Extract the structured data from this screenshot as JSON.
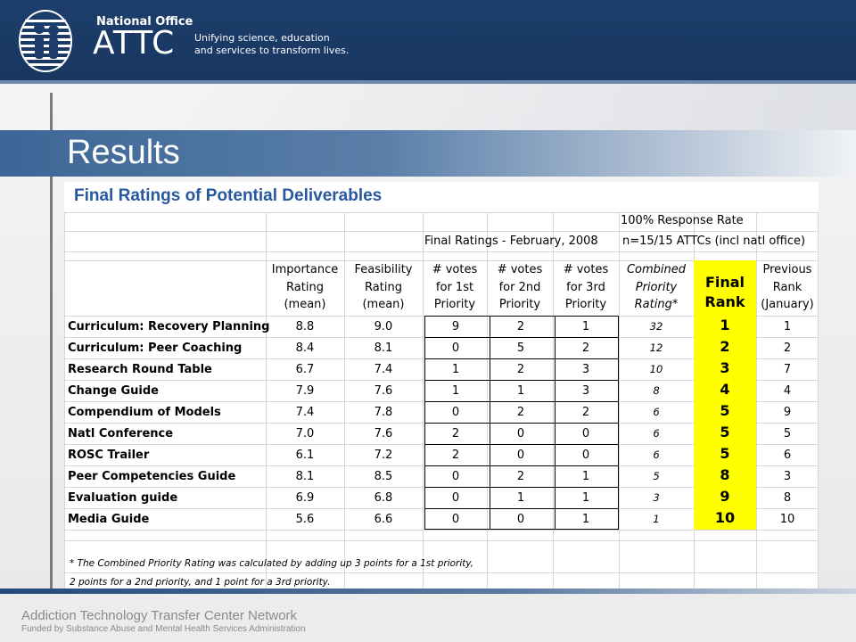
{
  "header": {
    "org_office": "National Office",
    "org_name": "ATTC",
    "tagline_1": "Unifying science, education",
    "tagline_2": "and services to transform lives."
  },
  "slide": {
    "title": "Results",
    "subtitle": "Final Ratings of Potential Deliverables"
  },
  "table": {
    "banner_response": "100% Response Rate",
    "banner_period": "Final Ratings - February, 2008",
    "banner_n": "n=15/15 ATTCs (incl natl office)",
    "columns": {
      "importance": [
        "Importance",
        "Rating",
        "(mean)"
      ],
      "feasibility": [
        "Feasibility",
        "Rating",
        "(mean)"
      ],
      "votes1": [
        "# votes",
        "for 1st",
        "Priority"
      ],
      "votes2": [
        "# votes",
        "for 2nd",
        "Priority"
      ],
      "votes3": [
        "# votes",
        "for 3rd",
        "Priority"
      ],
      "combined": [
        "Combined",
        "Priority",
        "Rating*"
      ],
      "final": [
        "Final",
        "Rank"
      ],
      "previous": [
        "Previous",
        "Rank",
        "(January)"
      ]
    },
    "rows": [
      {
        "name": "Curriculum: Recovery Planning",
        "imp": "8.8",
        "feas": "9.0",
        "v1": "9",
        "v2": "2",
        "v3": "1",
        "comb": "32",
        "final": "1",
        "prev": "1"
      },
      {
        "name": "Curriculum: Peer Coaching",
        "imp": "8.4",
        "feas": "8.1",
        "v1": "0",
        "v2": "5",
        "v3": "2",
        "comb": "12",
        "final": "2",
        "prev": "2"
      },
      {
        "name": "Research Round Table",
        "imp": "6.7",
        "feas": "7.4",
        "v1": "1",
        "v2": "2",
        "v3": "3",
        "comb": "10",
        "final": "3",
        "prev": "7"
      },
      {
        "name": "Change Guide",
        "imp": "7.9",
        "feas": "7.6",
        "v1": "1",
        "v2": "1",
        "v3": "3",
        "comb": "8",
        "final": "4",
        "prev": "4"
      },
      {
        "name": "Compendium of Models",
        "imp": "7.4",
        "feas": "7.8",
        "v1": "0",
        "v2": "2",
        "v3": "2",
        "comb": "6",
        "final": "5",
        "prev": "9"
      },
      {
        "name": "Natl Conference",
        "imp": "7.0",
        "feas": "7.6",
        "v1": "2",
        "v2": "0",
        "v3": "0",
        "comb": "6",
        "final": "5",
        "prev": "5"
      },
      {
        "name": "ROSC Trailer",
        "imp": "6.1",
        "feas": "7.2",
        "v1": "2",
        "v2": "0",
        "v3": "0",
        "comb": "6",
        "final": "5",
        "prev": "6"
      },
      {
        "name": "Peer Competencies Guide",
        "imp": "8.1",
        "feas": "8.5",
        "v1": "0",
        "v2": "2",
        "v3": "1",
        "comb": "5",
        "final": "8",
        "prev": "3"
      },
      {
        "name": "Evaluation guide",
        "imp": "6.9",
        "feas": "6.8",
        "v1": "0",
        "v2": "1",
        "v3": "1",
        "comb": "3",
        "final": "9",
        "prev": "8"
      },
      {
        "name": "Media Guide",
        "imp": "5.6",
        "feas": "6.6",
        "v1": "0",
        "v2": "0",
        "v3": "1",
        "comb": "1",
        "final": "10",
        "prev": "10"
      }
    ],
    "footnote_1": "* The Combined Priority Rating  was calculated by adding up 3 points for a 1st priority,",
    "footnote_2": "2 points for a 2nd priority, and 1 point for a 3rd priority."
  },
  "footer": {
    "line1": "Addiction Technology Transfer Center Network",
    "line2": "Funded by Substance Abuse and Mental Health Services Administration"
  },
  "colors": {
    "header_bg": "#1d3e6c",
    "title_band": "#3e6595",
    "subtitle_text": "#27579e",
    "highlight": "#ffff00"
  }
}
